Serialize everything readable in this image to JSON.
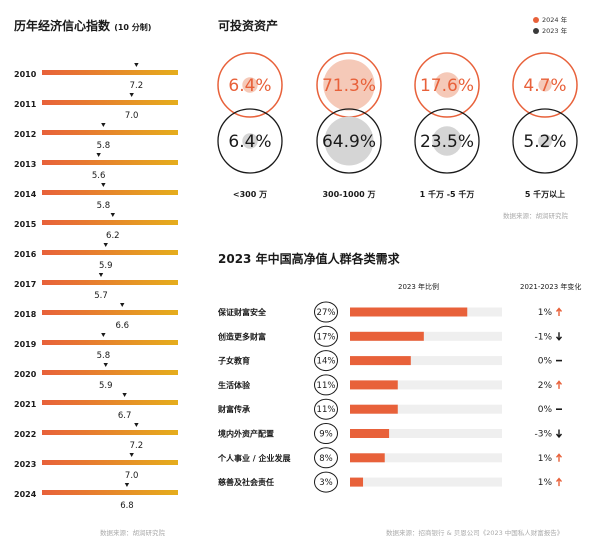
{
  "left": {
    "title": "历年经济信心指数",
    "subtitle": "(10 分制)",
    "source": "数据来源：胡润研究院"
  },
  "assets": {
    "title": "可投资资产",
    "legend": [
      {
        "label": "2024 年",
        "color": "#e8613a"
      },
      {
        "label": "2023 年",
        "color": "#3a3a3a"
      }
    ],
    "source": "数据来源：胡润研究院"
  },
  "needs": {
    "title": "2023 年中国高净值人群各类需求",
    "col_ratio": "2023 年比例",
    "col_change": "2021-2023 年变化"
  },
  "footer_source": "数据来源：招商银行 & 贝恩公司《2023 中国私人财富报告》",
  "colors": {
    "orange": "#e8613a",
    "gold": "#e5ad1c",
    "dark": "#1a1a1a",
    "track": "#efefef",
    "grey": "#d5d5d5"
  },
  "chart_data": [
    {
      "type": "bar",
      "title": "历年经济信心指数",
      "subtitle": "(10 分制)",
      "categories": [
        "2010",
        "2011",
        "2012",
        "2013",
        "2014",
        "2015",
        "2016",
        "2017",
        "2018",
        "2019",
        "2020",
        "2021",
        "2022",
        "2023",
        "2024"
      ],
      "values": [
        7.2,
        7.0,
        5.8,
        5.6,
        5.8,
        6.2,
        5.9,
        5.7,
        6.6,
        5.8,
        5.9,
        6.7,
        7.2,
        7.0,
        6.8
      ],
      "ylim": [
        0,
        10
      ]
    },
    {
      "type": "pie",
      "title": "可投资资产",
      "categories": [
        "<300 万",
        "300-1000 万",
        "1 千万 -5 千万",
        "5 千万以上"
      ],
      "series": [
        {
          "name": "2024 年",
          "values": [
            6.4,
            71.3,
            17.6,
            4.7
          ],
          "labels": [
            "6.4%",
            "71.3%",
            "17.6%",
            "4.7%"
          ]
        },
        {
          "name": "2023 年",
          "values": [
            6.4,
            64.9,
            23.5,
            5.2
          ],
          "labels": [
            "6.4%",
            "64.9%",
            "23.5%",
            "5.2%"
          ]
        }
      ]
    },
    {
      "type": "bar",
      "title": "2023 年中国高净值人群各类需求",
      "categories": [
        "保证财富安全",
        "创造更多财富",
        "子女教育",
        "生活体验",
        "财富传承",
        "境内外资产配置",
        "个人事业 / 企业发展",
        "慈善及社会责任"
      ],
      "values": [
        27,
        17,
        14,
        11,
        11,
        9,
        8,
        3
      ],
      "value_labels": [
        "27%",
        "17%",
        "14%",
        "11%",
        "11%",
        "9%",
        "8%",
        "3%"
      ],
      "change": [
        "1%",
        "-1%",
        "0%",
        "2%",
        "0%",
        "-3%",
        "1%",
        "1%"
      ],
      "change_dir": [
        "up",
        "down",
        "flat",
        "up",
        "flat",
        "down",
        "up",
        "up"
      ],
      "xlim": [
        0,
        35
      ]
    }
  ]
}
